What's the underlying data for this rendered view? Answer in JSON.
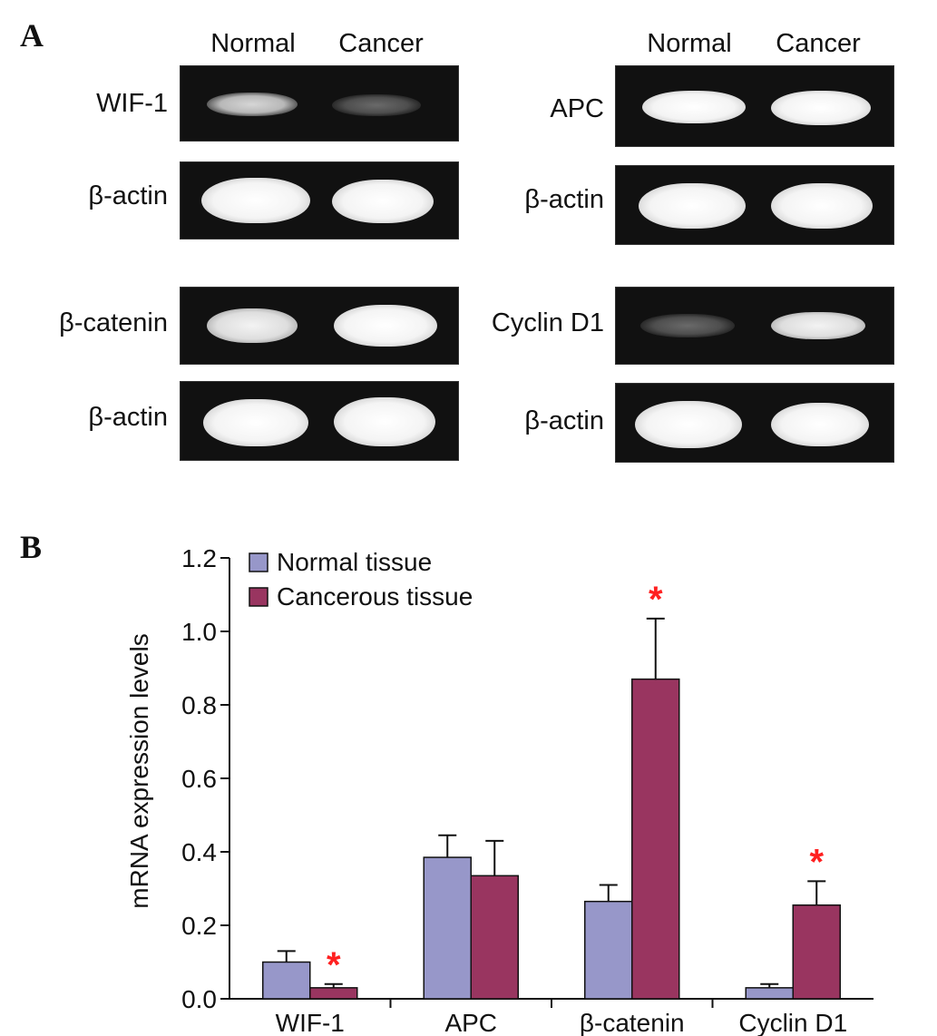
{
  "panel_a": {
    "letter": "A",
    "left_group": {
      "col_normal": "Normal",
      "col_cancer": "Cancer",
      "rows": [
        {
          "label": "WIF-1",
          "normal_intensity": "weak",
          "cancer_intensity": "faint"
        },
        {
          "label": "β-actin",
          "normal_intensity": "strong",
          "cancer_intensity": "strong"
        },
        {
          "label": "β-catenin",
          "normal_intensity": "mid",
          "cancer_intensity": "strong"
        },
        {
          "label": "β-actin",
          "normal_intensity": "strong",
          "cancer_intensity": "strong"
        }
      ]
    },
    "right_group": {
      "col_normal": "Normal",
      "col_cancer": "Cancer",
      "rows": [
        {
          "label": "APC",
          "normal_intensity": "strong",
          "cancer_intensity": "strong"
        },
        {
          "label": "β-actin",
          "normal_intensity": "strong",
          "cancer_intensity": "strong"
        },
        {
          "label": "Cyclin D1",
          "normal_intensity": "faint",
          "cancer_intensity": "mid"
        },
        {
          "label": "β-actin",
          "normal_intensity": "strong",
          "cancer_intensity": "strong"
        }
      ]
    }
  },
  "panel_b": {
    "letter": "B"
  },
  "chart_data": {
    "type": "bar",
    "title": "",
    "xlabel": "",
    "ylabel": "mRNA expression levels",
    "ylim": [
      0.0,
      1.2
    ],
    "yticks": [
      "0.0",
      "0.2",
      "0.4",
      "0.6",
      "0.8",
      "1.0",
      "1.2"
    ],
    "categories": [
      "WIF-1",
      "APC",
      "β-catenin",
      "Cyclin D1"
    ],
    "series": [
      {
        "name": "Normal tissue",
        "color": "#9797c9",
        "values": [
          0.1,
          0.385,
          0.265,
          0.03
        ],
        "errors": [
          0.03,
          0.06,
          0.045,
          0.01
        ]
      },
      {
        "name": "Cancerous tissue",
        "color": "#993560",
        "values": [
          0.03,
          0.335,
          0.87,
          0.255
        ],
        "errors": [
          0.01,
          0.095,
          0.165,
          0.065
        ]
      }
    ],
    "significance_marker": "*",
    "significance_color": "#ff2020",
    "significant": [
      {
        "category": "WIF-1",
        "series": "Cancerous tissue"
      },
      {
        "category": "β-catenin",
        "series": "Cancerous tissue"
      },
      {
        "category": "Cyclin D1",
        "series": "Cancerous tissue"
      }
    ],
    "legend_position": "top-left",
    "grid": false
  }
}
